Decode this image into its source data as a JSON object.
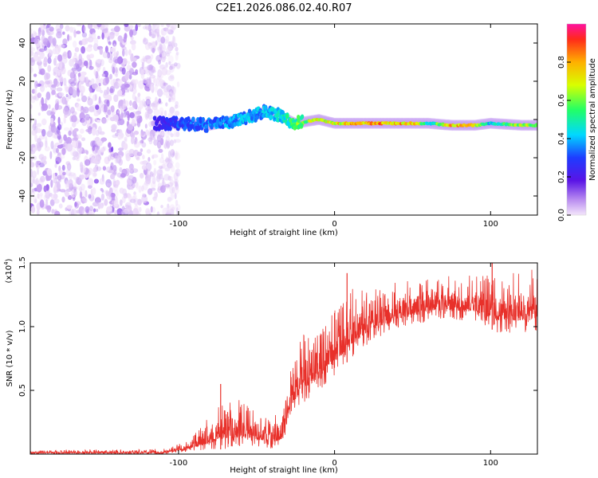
{
  "title": "C2E1.2026.086.02.40.R07",
  "colors": {
    "snr_line": "#e8302a",
    "background": "#ffffff"
  },
  "chart_data": [
    {
      "type": "heatmap",
      "xlabel": "Height of straight line (km)",
      "ylabel": "Frequency (Hz)",
      "xlim": [
        -195,
        130
      ],
      "ylim": [
        -50,
        50
      ],
      "x_ticks": [
        {
          "value": -100,
          "label": "-100"
        },
        {
          "value": 0,
          "label": "0"
        },
        {
          "value": 100,
          "label": "100"
        }
      ],
      "y_ticks": [
        {
          "value": 40,
          "label": "40"
        },
        {
          "value": 20,
          "label": "20"
        },
        {
          "value": 0,
          "label": "0"
        },
        {
          "value": -20,
          "label": "-20"
        },
        {
          "value": -40,
          "label": "-40"
        }
      ],
      "colorbar": {
        "label": "Normalized spectral amplitude",
        "range": [
          0,
          1
        ],
        "ticks": [
          {
            "value": 0.0,
            "label": "0.0"
          },
          {
            "value": 0.2,
            "label": "0.2"
          },
          {
            "value": 0.4,
            "label": "0.4"
          },
          {
            "value": 0.6,
            "label": "0.6"
          },
          {
            "value": 0.8,
            "label": "0.8"
          }
        ]
      },
      "noise_region": {
        "x_range": [
          -195,
          -100
        ],
        "y_range": [
          -50,
          50
        ],
        "amplitude_range": [
          0.0,
          0.15
        ]
      },
      "signal_track": [
        {
          "x": -115,
          "f": -2,
          "amp": 0.25
        },
        {
          "x": -100,
          "f": -2,
          "amp": 0.35
        },
        {
          "x": -80,
          "f": -3,
          "amp": 0.4
        },
        {
          "x": -60,
          "f": 0,
          "amp": 0.45
        },
        {
          "x": -45,
          "f": 4,
          "amp": 0.45
        },
        {
          "x": -35,
          "f": 2,
          "amp": 0.5
        },
        {
          "x": -25,
          "f": -2,
          "amp": 0.65
        },
        {
          "x": -10,
          "f": 0,
          "amp": 0.8
        },
        {
          "x": 0,
          "f": -2,
          "amp": 0.85
        },
        {
          "x": 20,
          "f": -2,
          "amp": 0.95
        },
        {
          "x": 50,
          "f": -2,
          "amp": 0.9
        },
        {
          "x": 60,
          "f": -2,
          "amp": 0.5
        },
        {
          "x": 75,
          "f": -3,
          "amp": 0.9
        },
        {
          "x": 90,
          "f": -3,
          "amp": 0.85
        },
        {
          "x": 100,
          "f": -2,
          "amp": 0.5
        },
        {
          "x": 120,
          "f": -3,
          "amp": 0.8
        },
        {
          "x": 130,
          "f": -3,
          "amp": 0.6
        }
      ]
    },
    {
      "type": "line",
      "xlabel": "Height of straight line (km)",
      "ylabel": "SNR (10 * v/v)",
      "y_multiplier": "(x10",
      "y_multiplier_exp": "4",
      "y_multiplier_close": ")",
      "xlim": [
        -195,
        130
      ],
      "ylim": [
        0,
        1.5
      ],
      "x_ticks": [
        {
          "value": -100,
          "label": "-100"
        },
        {
          "value": 0,
          "label": "0"
        },
        {
          "value": 100,
          "label": "100"
        }
      ],
      "y_ticks": [
        {
          "value": 1.5,
          "label": "1.5"
        },
        {
          "value": 1.0,
          "label": "1.0"
        },
        {
          "value": 0.5,
          "label": "0.5"
        }
      ],
      "series": [
        {
          "name": "SNR",
          "envelope": [
            {
              "x": -195,
              "low": 0.0,
              "high": 0.03
            },
            {
              "x": -110,
              "low": 0.0,
              "high": 0.04
            },
            {
              "x": -95,
              "low": 0.02,
              "high": 0.1
            },
            {
              "x": -80,
              "low": 0.03,
              "high": 0.3
            },
            {
              "x": -70,
              "low": 0.04,
              "high": 0.48
            },
            {
              "x": -55,
              "low": 0.06,
              "high": 0.4
            },
            {
              "x": -40,
              "low": 0.04,
              "high": 0.3
            },
            {
              "x": -33,
              "low": 0.05,
              "high": 0.4
            },
            {
              "x": -28,
              "low": 0.3,
              "high": 0.7
            },
            {
              "x": -20,
              "low": 0.4,
              "high": 0.95
            },
            {
              "x": -10,
              "low": 0.5,
              "high": 1.0
            },
            {
              "x": 0,
              "low": 0.6,
              "high": 1.15
            },
            {
              "x": 10,
              "low": 0.75,
              "high": 1.3
            },
            {
              "x": 25,
              "low": 0.9,
              "high": 1.3
            },
            {
              "x": 45,
              "low": 1.0,
              "high": 1.38
            },
            {
              "x": 70,
              "low": 1.05,
              "high": 1.4
            },
            {
              "x": 90,
              "low": 1.05,
              "high": 1.4
            },
            {
              "x": 105,
              "low": 0.95,
              "high": 1.45
            },
            {
              "x": 130,
              "low": 0.95,
              "high": 1.45
            }
          ],
          "spikes": [
            {
              "x": -73,
              "value": 0.55
            },
            {
              "x": 8,
              "value": 1.42
            },
            {
              "x": 101,
              "value": 1.5
            }
          ]
        }
      ]
    }
  ]
}
